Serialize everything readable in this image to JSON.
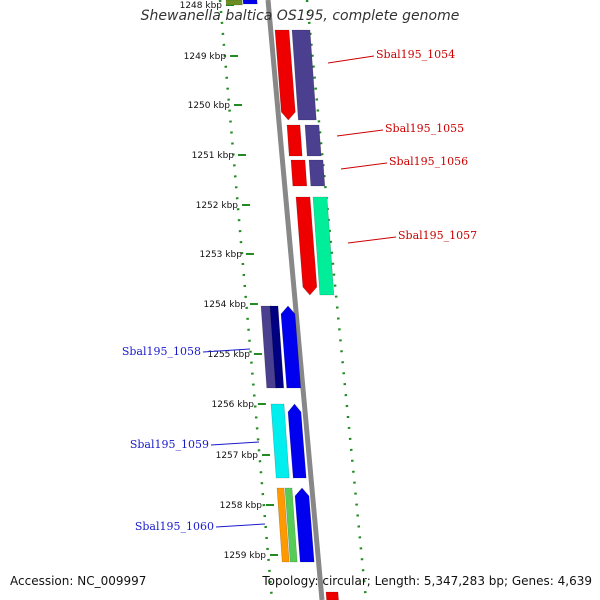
{
  "title": "Shewanella baltica OS195, complete genome",
  "footer": {
    "accession": "Accession: NC_009997",
    "summary": "Topology: circular; Length: 5,347,283 bp; Genes: 4,639"
  },
  "ticks": [
    "1248 kbp",
    "1249 kbp",
    "1250 kbp",
    "1251 kbp",
    "1252 kbp",
    "1253 kbp",
    "1254 kbp",
    "1255 kbp",
    "1256 kbp",
    "1257 kbp",
    "1258 kbp",
    "1259 kbp"
  ],
  "genes": [
    {
      "label": "Sbal195_1054",
      "strand": "+",
      "color": "#cc0000",
      "labelColor": "#cc0000"
    },
    {
      "label": "Sbal195_1055",
      "strand": "+",
      "color": "#cc0000",
      "labelColor": "#cc0000"
    },
    {
      "label": "Sbal195_1056",
      "strand": "+",
      "color": "#cc0000",
      "labelColor": "#cc0000"
    },
    {
      "label": "Sbal195_1057",
      "strand": "+",
      "color": "#cc0000",
      "labelColor": "#cc0000"
    },
    {
      "label": "Sbal195_1058",
      "strand": "-",
      "color": "#1a1acc",
      "labelColor": "#1a1acc"
    },
    {
      "label": "Sbal195_1059",
      "strand": "-",
      "color": "#1a1acc",
      "labelColor": "#1a1acc"
    },
    {
      "label": "Sbal195_1060",
      "strand": "-",
      "color": "#1a1acc",
      "labelColor": "#1a1acc"
    }
  ],
  "colors": {
    "backbone": "#888888",
    "tickMark": "#228b22",
    "red": "#ee0000",
    "purple": "#4b3f8f",
    "teal": "#00ee99",
    "blue": "#0000ee",
    "navy": "#000080",
    "cyan": "#00eeee",
    "orange": "#ff9900",
    "green": "#55cc55",
    "olive": "#6b8e23"
  }
}
